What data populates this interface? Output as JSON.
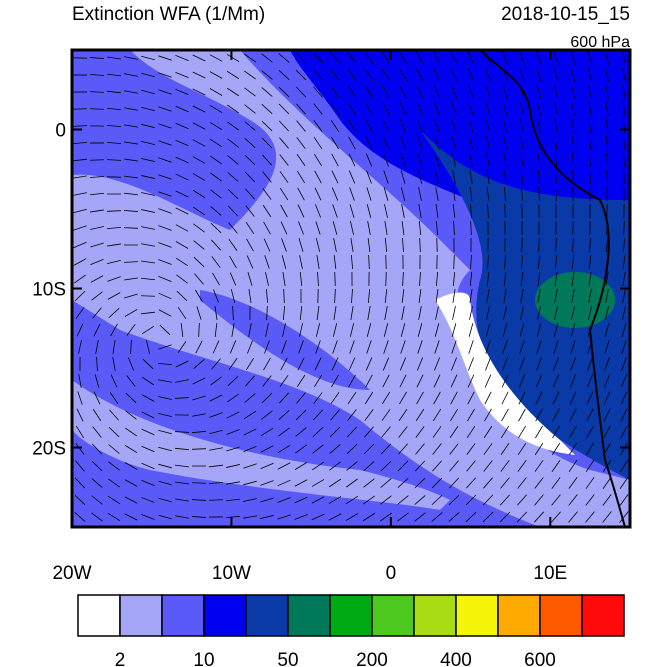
{
  "header": {
    "title": "Extinction WFA (1/Mm)",
    "time": "2018-10-15_15",
    "level": "600 hPa"
  },
  "map": {
    "lon_range": [
      -20,
      15
    ],
    "lat_range": [
      -25,
      5
    ],
    "lat_ticks": [
      {
        "value": 0,
        "label": "0"
      },
      {
        "value": -10,
        "label": "10S"
      },
      {
        "value": -20,
        "label": "20S"
      }
    ],
    "lon_ticks": [
      {
        "value": -20,
        "label": "20W"
      },
      {
        "value": -10,
        "label": "10W"
      },
      {
        "value": 0,
        "label": "0"
      },
      {
        "value": 10,
        "label": "10E"
      }
    ]
  },
  "colorbar": {
    "colors": [
      "#ffffff",
      "#a6a6f8",
      "#5a5af8",
      "#0000f0",
      "#0a3aa8",
      "#00785a",
      "#00aa14",
      "#4cc81e",
      "#aadc14",
      "#f5f50a",
      "#ffaa00",
      "#ff5a00",
      "#ff0a0a"
    ],
    "labels": [
      "2",
      "10",
      "50",
      "200",
      "400",
      "600"
    ]
  }
}
